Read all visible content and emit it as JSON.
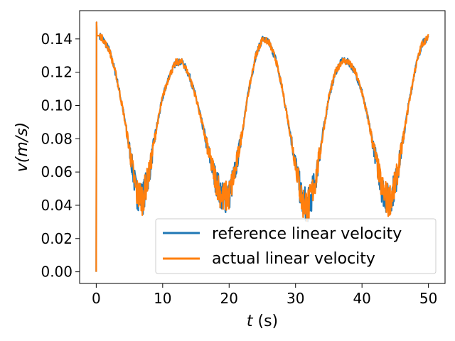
{
  "chart_data": {
    "type": "line",
    "title": "",
    "xlabel_var": "t",
    "xlabel_unit": " (s)",
    "ylabel_var": "v",
    "ylabel_unit": "(m/s)",
    "xlim": [
      -2.5,
      52.5
    ],
    "ylim": [
      -0.007,
      0.157
    ],
    "xticks": [
      0,
      10,
      20,
      30,
      40,
      50
    ],
    "xtick_labels": [
      "0",
      "10",
      "20",
      "30",
      "40",
      "50"
    ],
    "yticks": [
      0.0,
      0.02,
      0.04,
      0.06,
      0.08,
      0.1,
      0.12,
      0.14
    ],
    "ytick_labels": [
      "0.00",
      "0.02",
      "0.04",
      "0.06",
      "0.08",
      "0.10",
      "0.12",
      "0.14"
    ],
    "grid": false,
    "legend_position": "lower-right",
    "series": [
      {
        "name": "reference linear velocity",
        "color": "#1f77b4",
        "x": [
          0.0,
          0.05,
          0.1,
          0.5,
          1,
          2,
          3,
          4,
          5,
          6,
          7,
          8,
          9,
          10,
          11,
          12,
          13,
          14,
          15,
          16,
          17,
          18,
          19,
          20,
          21,
          22,
          23,
          24,
          25,
          26,
          27,
          28,
          29,
          30,
          31,
          32,
          33,
          34,
          35,
          36,
          37,
          38,
          39,
          40,
          41,
          42,
          43,
          44,
          45,
          46,
          47,
          48,
          49,
          50
        ],
        "y": [
          0.0,
          0.15,
          0.142,
          0.142,
          0.14,
          0.133,
          0.118,
          0.098,
          0.074,
          0.048,
          0.044,
          0.06,
          0.085,
          0.105,
          0.118,
          0.126,
          0.126,
          0.118,
          0.105,
          0.088,
          0.07,
          0.055,
          0.044,
          0.046,
          0.062,
          0.085,
          0.11,
          0.13,
          0.14,
          0.138,
          0.128,
          0.11,
          0.088,
          0.065,
          0.042,
          0.04,
          0.055,
          0.08,
          0.105,
          0.12,
          0.127,
          0.126,
          0.12,
          0.108,
          0.09,
          0.07,
          0.05,
          0.042,
          0.052,
          0.075,
          0.1,
          0.122,
          0.137,
          0.141
        ]
      },
      {
        "name": "actual linear velocity",
        "color": "#ff7f0e",
        "x": [
          0.0,
          0.05,
          0.1,
          0.5,
          1,
          2,
          3,
          4,
          5,
          6,
          7,
          8,
          9,
          10,
          11,
          12,
          13,
          14,
          15,
          16,
          17,
          18,
          19,
          20,
          21,
          22,
          23,
          24,
          25,
          26,
          27,
          28,
          29,
          30,
          31,
          32,
          33,
          34,
          35,
          36,
          37,
          38,
          39,
          40,
          41,
          42,
          43,
          44,
          45,
          46,
          47,
          48,
          49,
          50
        ],
        "y": [
          0.0,
          0.15,
          0.142,
          0.142,
          0.14,
          0.133,
          0.118,
          0.098,
          0.074,
          0.048,
          0.044,
          0.06,
          0.085,
          0.105,
          0.118,
          0.126,
          0.126,
          0.118,
          0.105,
          0.088,
          0.07,
          0.055,
          0.044,
          0.046,
          0.062,
          0.085,
          0.11,
          0.13,
          0.14,
          0.138,
          0.128,
          0.11,
          0.088,
          0.065,
          0.042,
          0.04,
          0.055,
          0.08,
          0.105,
          0.12,
          0.127,
          0.126,
          0.12,
          0.108,
          0.09,
          0.07,
          0.05,
          0.042,
          0.052,
          0.075,
          0.1,
          0.122,
          0.137,
          0.141
        ]
      }
    ]
  }
}
